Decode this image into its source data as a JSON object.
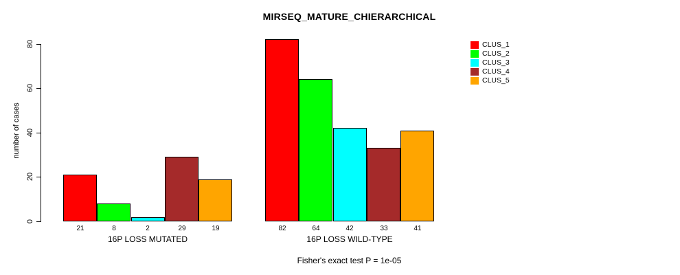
{
  "chart_data": {
    "type": "bar",
    "title": "MIRSEQ_MATURE_CHIERARCHICAL",
    "subtitle": "Fisher's exact test P = 1e-05",
    "xlabel": "",
    "ylabel": "number of cases",
    "categories": [
      "16P LOSS MUTATED",
      "16P LOSS WILD-TYPE"
    ],
    "series": [
      {
        "name": "CLUS_1",
        "color": "#FF0000",
        "values": [
          21,
          82
        ]
      },
      {
        "name": "CLUS_2",
        "color": "#00FF00",
        "values": [
          8,
          64
        ]
      },
      {
        "name": "CLUS_3",
        "color": "#00FFFF",
        "values": [
          2,
          42
        ]
      },
      {
        "name": "CLUS_4",
        "color": "#A52A2A",
        "values": [
          29,
          33
        ]
      },
      {
        "name": "CLUS_5",
        "color": "#FFA500",
        "values": [
          19,
          41
        ]
      }
    ],
    "yticks": [
      0,
      20,
      40,
      60,
      80
    ],
    "ylim": [
      0,
      80
    ],
    "grid": false,
    "bar_value_labels": true,
    "legend_position": "top-right",
    "bar_border_color": "#000000",
    "background_color": "#FFFFFF",
    "text_color": "#000000"
  }
}
